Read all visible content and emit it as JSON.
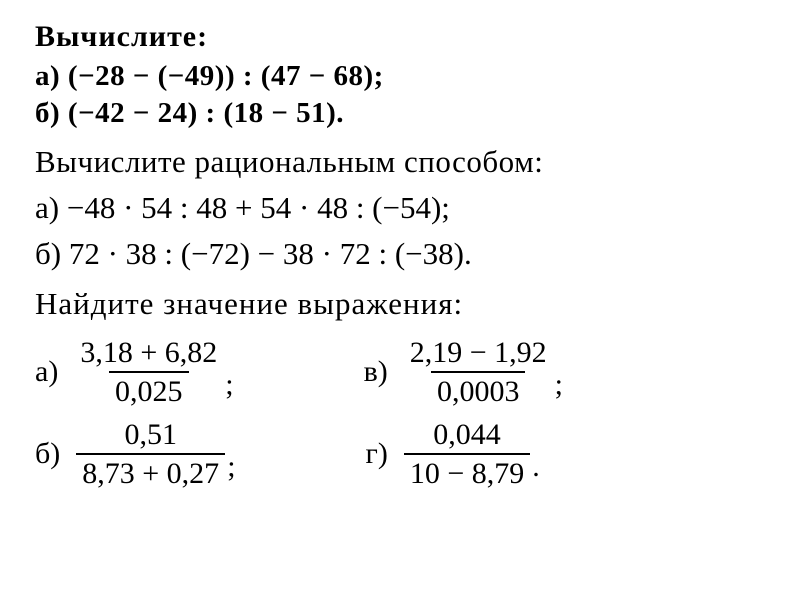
{
  "section1": {
    "heading": "Вычислите:",
    "item_a_label": "а)",
    "item_a_expr": "(−28 − (−49)) : (47 − 68);",
    "item_b_label": "б)",
    "item_b_expr": "(−42 − 24) : (18 − 51)."
  },
  "section2": {
    "heading": "Вычислите рациональным способом:",
    "item_a_label": "а)",
    "item_a_expr": "−48 · 54 : 48 + 54 · 48 : (−54);",
    "item_b_label": "б)",
    "item_b_expr": "72 · 38 : (−72) − 38 · 72 : (−38)."
  },
  "section3": {
    "heading": "Найдите значение выражения:",
    "item_a": {
      "label": "а)",
      "numerator": "3,18 + 6,82",
      "denominator": "0,025",
      "suffix": ";"
    },
    "item_b": {
      "label": "б)",
      "numerator": "0,51",
      "denominator": "8,73 + 0,27",
      "suffix": ";"
    },
    "item_v": {
      "label": "в)",
      "numerator": "2,19 − 1,92",
      "denominator": "0,0003",
      "suffix": ";"
    },
    "item_g": {
      "label": "г)",
      "numerator": "0,044",
      "denominator": "10 − 8,79",
      "suffix": "."
    }
  },
  "colors": {
    "text": "#000000",
    "background": "#ffffff"
  },
  "fonts": {
    "family": "Times New Roman",
    "heading_size_pt": 30,
    "body_size_pt": 29
  }
}
